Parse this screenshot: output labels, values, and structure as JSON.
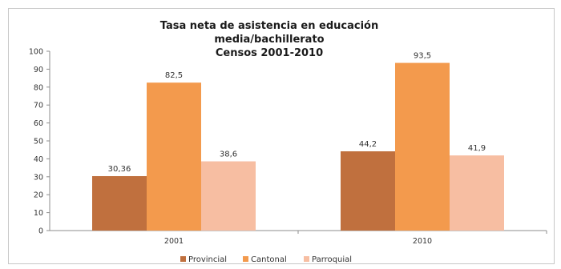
{
  "chart_data": {
    "type": "bar",
    "title_lines": [
      "Tasa neta de asistencia en educación",
      "media/bachillerato",
      "Censos 2001-2010"
    ],
    "categories": [
      "2001",
      "2010"
    ],
    "series": [
      {
        "name": "Provincial",
        "color": "#c0703e",
        "values": [
          30.36,
          44.2
        ],
        "labels": [
          "30,36",
          "44,2"
        ]
      },
      {
        "name": "Cantonal",
        "color": "#f39a4d",
        "values": [
          82.5,
          93.5
        ],
        "labels": [
          "82,5",
          "93,5"
        ]
      },
      {
        "name": "Parroquial",
        "color": "#f7bea2",
        "values": [
          38.6,
          41.9
        ],
        "labels": [
          "38,6",
          "41,9"
        ]
      }
    ],
    "y_ticks": [
      "0",
      "10",
      "20",
      "30",
      "40",
      "50",
      "60",
      "70",
      "80",
      "90",
      "100"
    ],
    "ylim": [
      0,
      100
    ],
    "xlabel": "",
    "ylabel": "",
    "grid": false,
    "legend_position": "bottom"
  }
}
